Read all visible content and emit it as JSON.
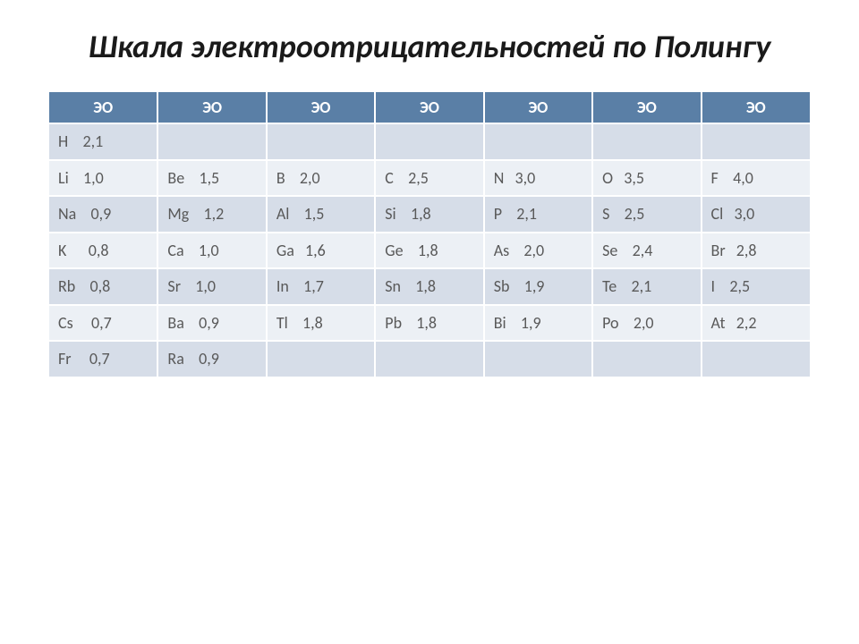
{
  "title": "Шкала электроотрицательностей по Полингу",
  "table": {
    "header_label": "ЭО",
    "num_cols": 7,
    "header_bg": "#5a7fa6",
    "header_fg": "#ffffff",
    "row_odd_bg": "#d6dde8",
    "row_even_bg": "#ecf0f5",
    "cell_fg": "#595959",
    "title_fontsize": 36,
    "cell_fontsize": 18,
    "rows": [
      [
        "H    2,1",
        "",
        "",
        "",
        "",
        "",
        ""
      ],
      [
        "Li    1,0",
        "Be    1,5",
        "B    2,0",
        "C    2,5",
        "N   3,0",
        "O   3,5",
        "F    4,0"
      ],
      [
        "Na    0,9",
        "Mg    1,2",
        "Al    1,5",
        "Si    1,8",
        "P    2,1",
        "S    2,5",
        "Cl   3,0"
      ],
      [
        "K      0,8",
        "Ca    1,0",
        "Ga   1,6",
        "Ge    1,8",
        "As    2,0",
        "Se    2,4",
        "Br   2,8"
      ],
      [
        "Rb    0,8",
        "Sr    1,0",
        "In    1,7",
        "Sn    1,8",
        "Sb    1,9",
        "Te    2,1",
        "I    2,5"
      ],
      [
        "Cs     0,7",
        "Ba    0,9",
        "Tl    1,8",
        "Pb    1,8",
        "Bi    1,9",
        "Po    2,0",
        "At   2,2"
      ],
      [
        "Fr     0,7",
        "Ra    0,9",
        "",
        "",
        "",
        "",
        ""
      ]
    ]
  }
}
